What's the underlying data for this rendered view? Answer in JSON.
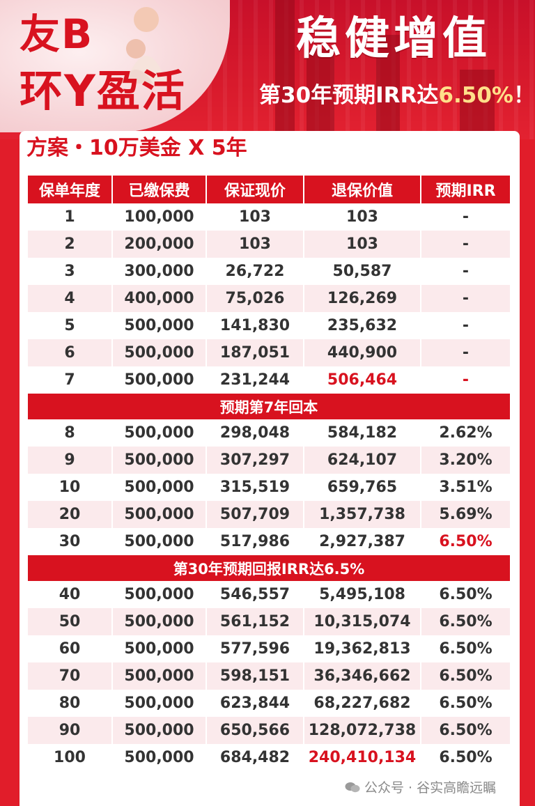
{
  "header": {
    "badge_line1": "友B",
    "badge_line2": "环Y盈活",
    "headline": "稳健增值",
    "subline_prefix": "第30年预期IRR达",
    "subline_highlight": "6.50%",
    "subline_suffix": "！"
  },
  "plan_title": "方案・10万美金 X 5年",
  "table": {
    "headers": [
      "保单年度",
      "已缴保费",
      "保证现价",
      "退保价值",
      "预期IRR"
    ],
    "group1": [
      [
        "1",
        "100,000",
        "103",
        "103",
        "-"
      ],
      [
        "2",
        "200,000",
        "103",
        "103",
        "-"
      ],
      [
        "3",
        "300,000",
        "26,722",
        "50,587",
        "-"
      ],
      [
        "4",
        "400,000",
        "75,026",
        "126,269",
        "-"
      ],
      [
        "5",
        "500,000",
        "141,830",
        "235,632",
        "-"
      ],
      [
        "6",
        "500,000",
        "187,051",
        "440,900",
        "-"
      ],
      [
        "7",
        "500,000",
        "231,244",
        "506,464",
        "-"
      ]
    ],
    "banner1": "预期第7年回本",
    "group2": [
      [
        "8",
        "500,000",
        "298,048",
        "584,182",
        "2.62%"
      ],
      [
        "9",
        "500,000",
        "307,297",
        "624,107",
        "3.20%"
      ],
      [
        "10",
        "500,000",
        "315,519",
        "659,765",
        "3.51%"
      ],
      [
        "20",
        "500,000",
        "507,709",
        "1,357,738",
        "5.69%"
      ],
      [
        "30",
        "500,000",
        "517,986",
        "2,927,387",
        "6.50%"
      ]
    ],
    "banner2": "第30年预期回报IRR达6.5%",
    "group3": [
      [
        "40",
        "500,000",
        "546,557",
        "5,495,108",
        "6.50%"
      ],
      [
        "50",
        "500,000",
        "561,152",
        "10,315,074",
        "6.50%"
      ],
      [
        "60",
        "500,000",
        "577,596",
        "19,362,813",
        "6.50%"
      ],
      [
        "70",
        "500,000",
        "598,151",
        "36,346,662",
        "6.50%"
      ],
      [
        "80",
        "500,000",
        "623,844",
        "68,227,682",
        "6.50%"
      ],
      [
        "90",
        "500,000",
        "650,566",
        "128,072,738",
        "6.50%"
      ],
      [
        "100",
        "500,000",
        "684,482",
        "240,410,134",
        "6.50%"
      ]
    ]
  },
  "watermark": "公众号 · 谷实高瞻远瞩",
  "colors": {
    "brand_red": "#d8121f",
    "row_tint": "#fbeaec",
    "highlight_yellow": "#ffe08a"
  }
}
